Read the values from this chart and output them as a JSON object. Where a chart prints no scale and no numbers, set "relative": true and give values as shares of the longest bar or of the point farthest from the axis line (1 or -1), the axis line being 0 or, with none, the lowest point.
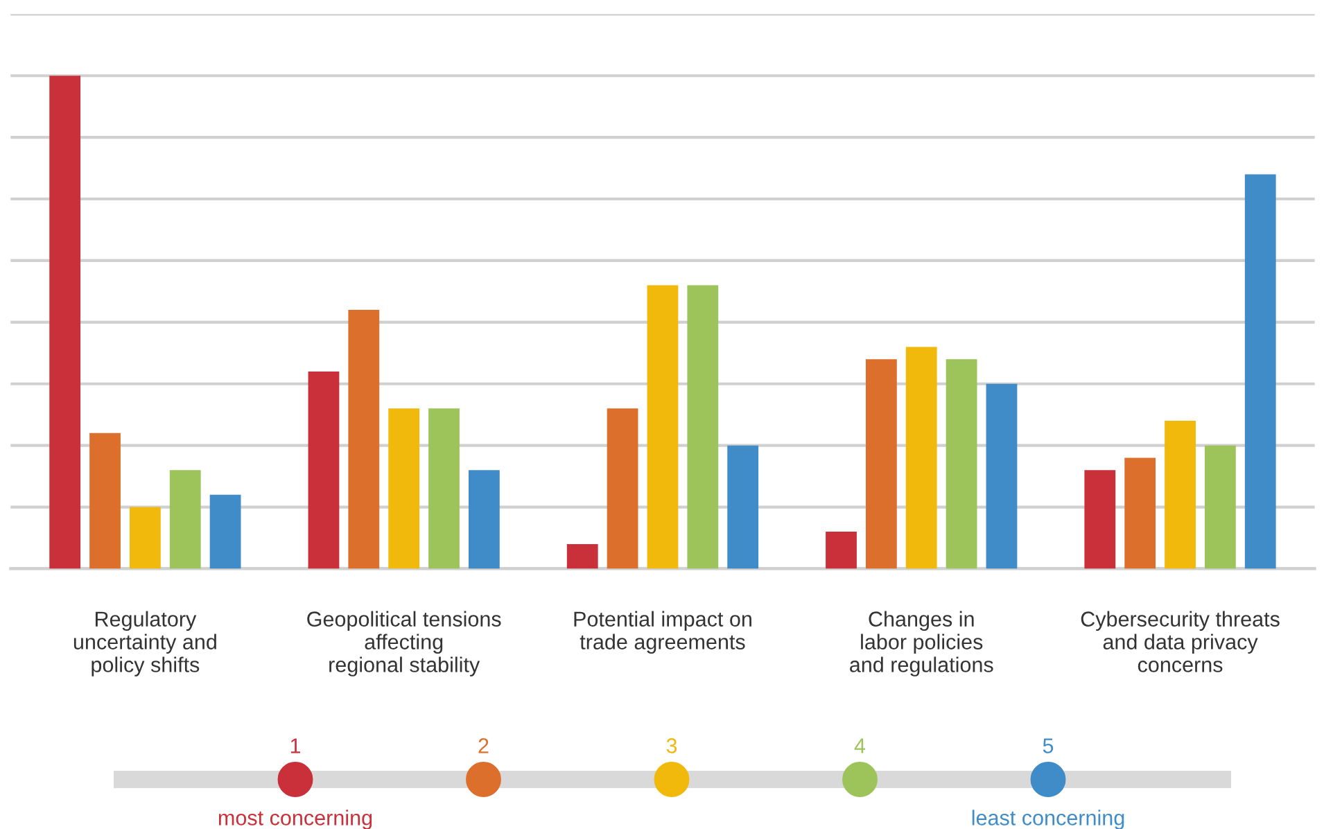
{
  "chart_data": {
    "type": "bar",
    "relative": true,
    "grid": "y",
    "legend": "bottom",
    "categories": [
      "Regulatory\nuncertainty and\npolicy shifts",
      "Geopolitical tensions\naffecting\nregional stability",
      "Potential impact on\ntrade agreements",
      "Changes in\nlabor policies\nand regulations",
      "Cybersecurity threats\nand data privacy\nconcerns"
    ],
    "series": [
      {
        "name": "1",
        "color": "#c9303a",
        "values": [
          1.0,
          0.4,
          0.05,
          0.075,
          0.2
        ]
      },
      {
        "name": "2",
        "color": "#dc6f2c",
        "values": [
          0.275,
          0.525,
          0.325,
          0.425,
          0.225
        ]
      },
      {
        "name": "3",
        "color": "#f0b90c",
        "values": [
          0.125,
          0.325,
          0.575,
          0.45,
          0.3
        ]
      },
      {
        "name": "4",
        "color": "#9dc35b",
        "values": [
          0.2,
          0.325,
          0.575,
          0.425,
          0.25
        ]
      },
      {
        "name": "5",
        "color": "#3f8cc8",
        "values": [
          0.15,
          0.2,
          0.25,
          0.375,
          0.8
        ]
      }
    ],
    "annotations": [
      "most concerning",
      "least concerning"
    ]
  }
}
